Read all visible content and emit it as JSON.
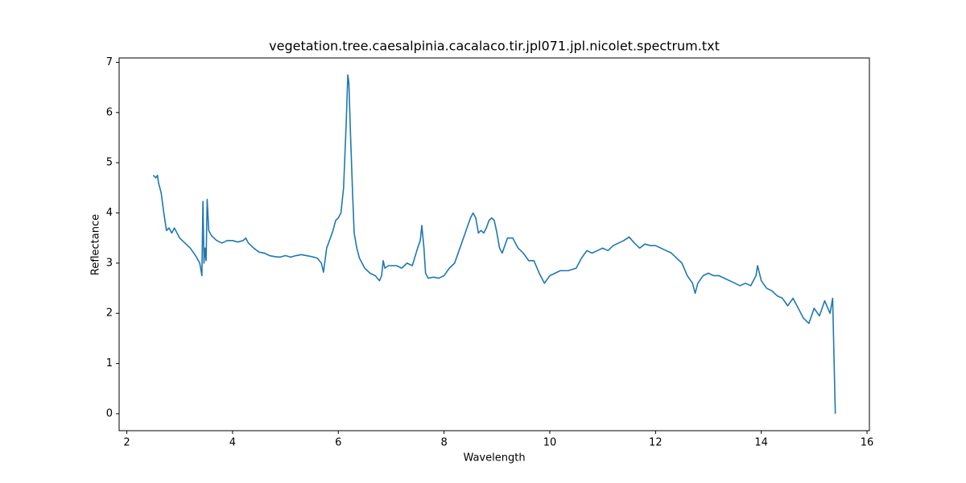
{
  "chart_data": {
    "type": "line",
    "title": "vegetation.tree.caesalpinia.cacalaco.tir.jpl071.jpl.nicolet.spectrum.txt",
    "x_label": "Wavelength",
    "y_label": "Reflectance",
    "xlim": [
      1.855,
      16.045
    ],
    "ylim": [
      -0.3375,
      7.0875
    ],
    "xticks": [
      2,
      4,
      6,
      8,
      10,
      12,
      14,
      16
    ],
    "yticks": [
      0,
      1,
      2,
      3,
      4,
      5,
      6,
      7
    ],
    "grid": false,
    "series": [
      {
        "color": "#1f77b4",
        "x": [
          2.5,
          2.55,
          2.58,
          2.6,
          2.65,
          2.7,
          2.75,
          2.8,
          2.85,
          2.9,
          2.95,
          3.0,
          3.1,
          3.2,
          3.3,
          3.38,
          3.42,
          3.44,
          3.46,
          3.48,
          3.5,
          3.52,
          3.55,
          3.6,
          3.7,
          3.8,
          3.9,
          4.0,
          4.1,
          4.2,
          4.25,
          4.3,
          4.4,
          4.5,
          4.6,
          4.7,
          4.8,
          4.9,
          5.0,
          5.1,
          5.2,
          5.3,
          5.4,
          5.5,
          5.6,
          5.68,
          5.72,
          5.78,
          5.85,
          5.9,
          5.95,
          6.0,
          6.05,
          6.1,
          6.15,
          6.18,
          6.2,
          6.23,
          6.27,
          6.3,
          6.35,
          6.4,
          6.5,
          6.6,
          6.7,
          6.78,
          6.82,
          6.85,
          6.88,
          6.95,
          7.1,
          7.2,
          7.3,
          7.4,
          7.5,
          7.55,
          7.58,
          7.62,
          7.65,
          7.7,
          7.8,
          7.9,
          8.0,
          8.1,
          8.2,
          8.3,
          8.4,
          8.5,
          8.55,
          8.6,
          8.65,
          8.7,
          8.75,
          8.8,
          8.85,
          8.9,
          8.95,
          9.0,
          9.05,
          9.1,
          9.2,
          9.3,
          9.4,
          9.5,
          9.6,
          9.7,
          9.8,
          9.9,
          10.0,
          10.1,
          10.2,
          10.35,
          10.5,
          10.6,
          10.7,
          10.8,
          10.9,
          11.0,
          11.1,
          11.2,
          11.3,
          11.4,
          11.5,
          11.6,
          11.7,
          11.8,
          11.9,
          12.0,
          12.1,
          12.2,
          12.3,
          12.4,
          12.5,
          12.6,
          12.7,
          12.75,
          12.8,
          12.9,
          13.0,
          13.1,
          13.2,
          13.3,
          13.4,
          13.5,
          13.6,
          13.7,
          13.8,
          13.9,
          13.93,
          14.0,
          14.1,
          14.2,
          14.3,
          14.4,
          14.5,
          14.6,
          14.7,
          14.8,
          14.9,
          15.0,
          15.1,
          15.2,
          15.3,
          15.35,
          15.4
        ],
        "values": [
          4.75,
          4.7,
          4.75,
          4.6,
          4.4,
          4.0,
          3.65,
          3.7,
          3.6,
          3.7,
          3.6,
          3.5,
          3.4,
          3.3,
          3.15,
          3.0,
          2.75,
          4.23,
          3.0,
          3.3,
          3.05,
          4.27,
          3.65,
          3.55,
          3.45,
          3.4,
          3.45,
          3.45,
          3.42,
          3.45,
          3.5,
          3.4,
          3.3,
          3.22,
          3.2,
          3.15,
          3.13,
          3.12,
          3.15,
          3.12,
          3.15,
          3.17,
          3.15,
          3.13,
          3.1,
          3.0,
          2.82,
          3.3,
          3.5,
          3.65,
          3.85,
          3.9,
          4.0,
          4.5,
          5.8,
          6.75,
          6.6,
          5.6,
          4.4,
          3.6,
          3.3,
          3.1,
          2.9,
          2.8,
          2.75,
          2.65,
          2.75,
          3.05,
          2.9,
          2.95,
          2.95,
          2.9,
          3.0,
          2.95,
          3.3,
          3.45,
          3.75,
          3.3,
          2.8,
          2.7,
          2.72,
          2.7,
          2.75,
          2.9,
          3.0,
          3.3,
          3.6,
          3.9,
          4.0,
          3.9,
          3.6,
          3.65,
          3.6,
          3.7,
          3.85,
          3.9,
          3.85,
          3.6,
          3.3,
          3.2,
          3.5,
          3.5,
          3.3,
          3.2,
          3.05,
          3.05,
          2.8,
          2.6,
          2.75,
          2.8,
          2.85,
          2.85,
          2.9,
          3.1,
          3.25,
          3.2,
          3.25,
          3.3,
          3.25,
          3.35,
          3.4,
          3.45,
          3.52,
          3.4,
          3.3,
          3.38,
          3.35,
          3.35,
          3.3,
          3.25,
          3.2,
          3.1,
          3.0,
          2.75,
          2.6,
          2.4,
          2.6,
          2.75,
          2.8,
          2.75,
          2.75,
          2.7,
          2.65,
          2.6,
          2.55,
          2.6,
          2.55,
          2.75,
          2.95,
          2.65,
          2.5,
          2.45,
          2.35,
          2.3,
          2.15,
          2.3,
          2.1,
          1.9,
          1.8,
          2.1,
          1.95,
          2.25,
          2.0,
          2.3,
          0.0
        ]
      }
    ]
  }
}
